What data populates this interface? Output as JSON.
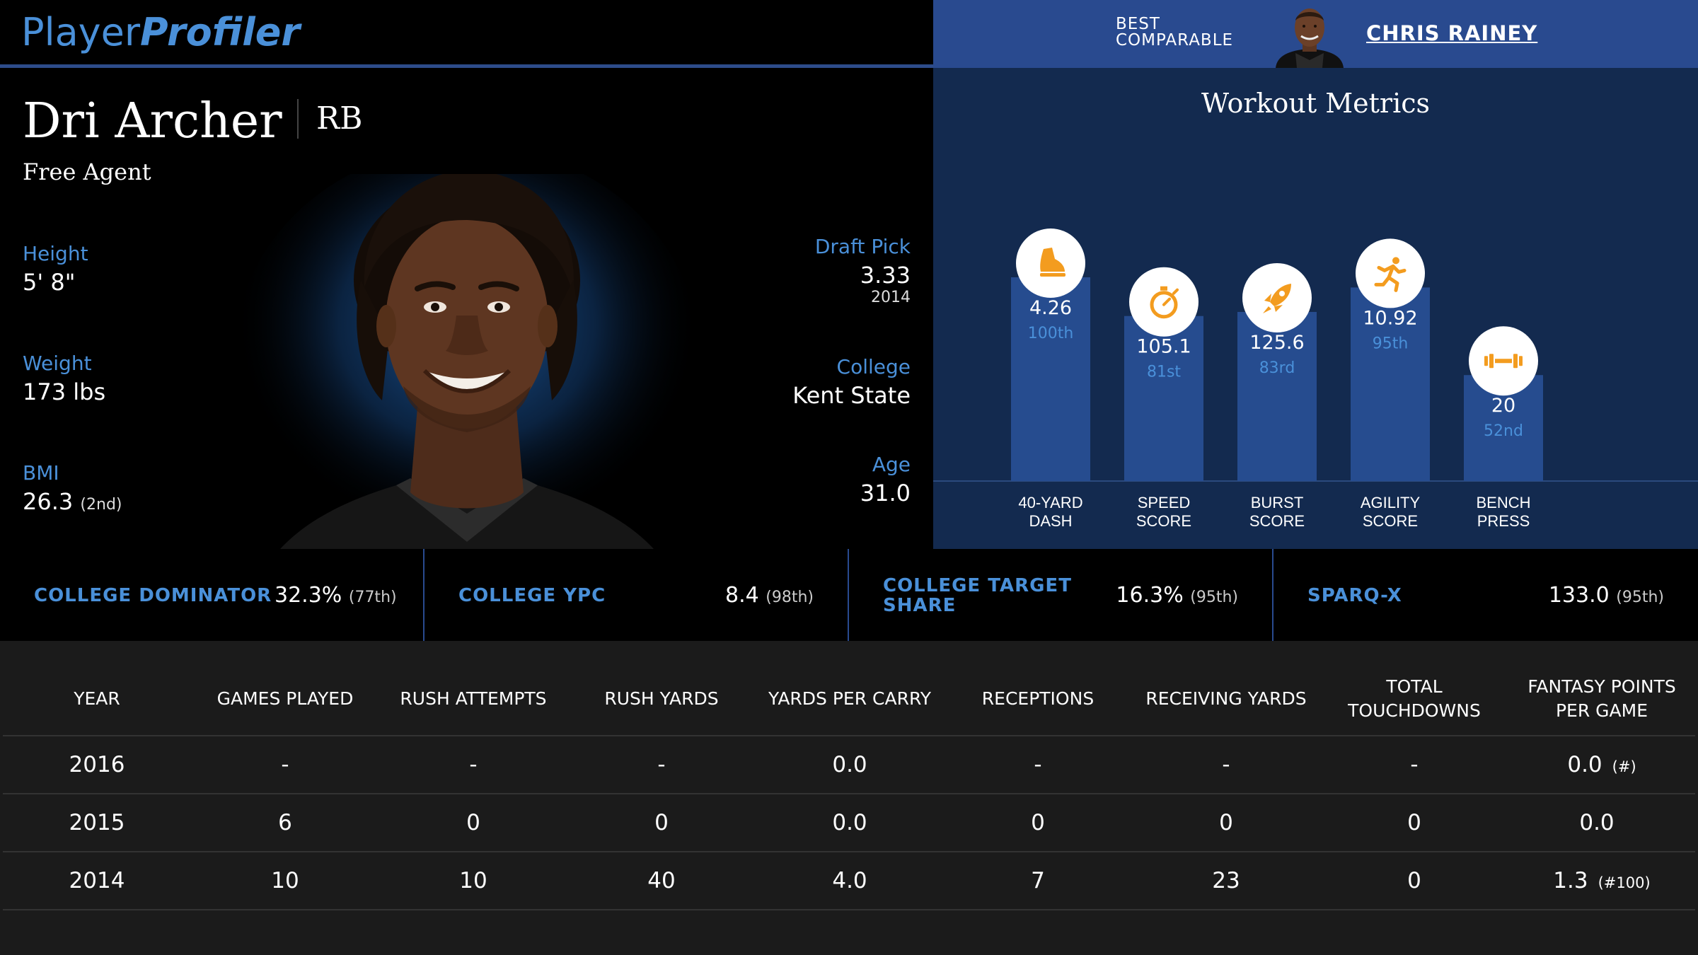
{
  "header": {
    "logo_part1": "Player",
    "logo_part2": "Profiler",
    "best_comparable_line1": "BEST",
    "best_comparable_line2": "COMPARABLE",
    "comparable_name": "CHRIS RAINEY"
  },
  "player": {
    "name": "Dri Archer",
    "position": "RB",
    "team": "Free Agent"
  },
  "left_stats": {
    "height_label": "Height",
    "height_value": "5' 8\"",
    "weight_label": "Weight",
    "weight_value": "173 lbs",
    "bmi_label": "BMI",
    "bmi_value": "26.3",
    "bmi_rank": "(2nd)"
  },
  "right_stats": {
    "draft_label": "Draft Pick",
    "draft_value": "3.33",
    "draft_year": "2014",
    "college_label": "College",
    "college_value": "Kent State",
    "age_label": "Age",
    "age_value": "31.0"
  },
  "workout": {
    "title": "Workout Metrics"
  },
  "chart_data": {
    "type": "bar",
    "title": "Workout Metrics",
    "percentile_range": [
      0,
      100
    ],
    "categories": [
      {
        "line1": "40-YARD",
        "line2": "DASH",
        "icon": "shoe-icon"
      },
      {
        "line1": "SPEED",
        "line2": "SCORE",
        "icon": "stopwatch-icon"
      },
      {
        "line1": "BURST",
        "line2": "SCORE",
        "icon": "rocket-icon"
      },
      {
        "line1": "AGILITY",
        "line2": "SCORE",
        "icon": "runner-icon"
      },
      {
        "line1": "BENCH",
        "line2": "PRESS",
        "icon": "dumbbell-icon"
      }
    ],
    "values": [
      "4.26",
      "105.1",
      "125.6",
      "10.92",
      "20"
    ],
    "percentiles": [
      100,
      81,
      83,
      95,
      52
    ],
    "percentile_labels": [
      "100th",
      "81st",
      "83rd",
      "95th",
      "52nd"
    ],
    "bar_color": "#264c8f",
    "icon_color": "#f39c1f"
  },
  "college_metrics": [
    {
      "label_line1": "COLLEGE DOMINATOR",
      "label_line2": "",
      "value": "32.3%",
      "rank": "(77th)"
    },
    {
      "label_line1": "COLLEGE YPC",
      "label_line2": "",
      "value": "8.4",
      "rank": "(98th)"
    },
    {
      "label_line1": "COLLEGE TARGET",
      "label_line2": "SHARE",
      "value": "16.3%",
      "rank": "(95th)"
    },
    {
      "label_line1": "SPARQ-X",
      "label_line2": "",
      "value": "133.0",
      "rank": "(95th)"
    }
  ],
  "stats_table": {
    "headers": [
      "YEAR",
      "GAMES PLAYED",
      "RUSH ATTEMPTS",
      "RUSH YARDS",
      "YARDS PER CARRY",
      "RECEPTIONS",
      "RECEIVING YARDS",
      "TOTAL TOUCHDOWNS",
      "FANTASY POINTS PER GAME"
    ],
    "rows": [
      {
        "cells": [
          "2016",
          "-",
          "-",
          "-",
          "0.0",
          "-",
          "-",
          "-",
          "0.0"
        ],
        "fp_rank": "(#)"
      },
      {
        "cells": [
          "2015",
          "6",
          "0",
          "0",
          "0.0",
          "0",
          "0",
          "0",
          "0.0"
        ],
        "fp_rank": ""
      },
      {
        "cells": [
          "2014",
          "10",
          "10",
          "40",
          "4.0",
          "7",
          "23",
          "0",
          "1.3"
        ],
        "fp_rank": "(#100)"
      }
    ]
  },
  "colors": {
    "accent_blue": "#4a90d9",
    "header_blue": "#294a8f",
    "panel_navy": "#132a4f",
    "orange": "#f39c1f"
  }
}
